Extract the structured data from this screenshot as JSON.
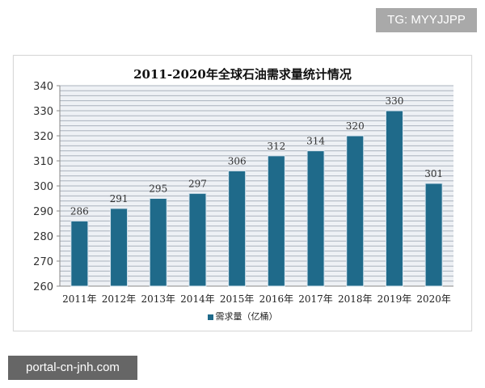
{
  "watermark_top": "TG: MYYJJPP",
  "watermark_bottom": "portal-cn-jnh.com",
  "chart_data": {
    "type": "bar",
    "title": "2011-2020年全球石油需求量统计情况",
    "categories": [
      "2011年",
      "2012年",
      "2013年",
      "2014年",
      "2015年",
      "2016年",
      "2017年",
      "2018年",
      "2019年",
      "2020年"
    ],
    "series": [
      {
        "name": "需求量（亿桶）",
        "values": [
          286,
          291,
          295,
          297,
          306,
          312,
          314,
          320,
          330,
          301
        ],
        "color": "#1f6a8a"
      }
    ],
    "ylim": [
      260,
      340
    ],
    "yticks": [
      260,
      270,
      280,
      290,
      300,
      310,
      320,
      330,
      340
    ],
    "grid": true,
    "legend": "bottom",
    "xlabel": "",
    "ylabel": ""
  }
}
